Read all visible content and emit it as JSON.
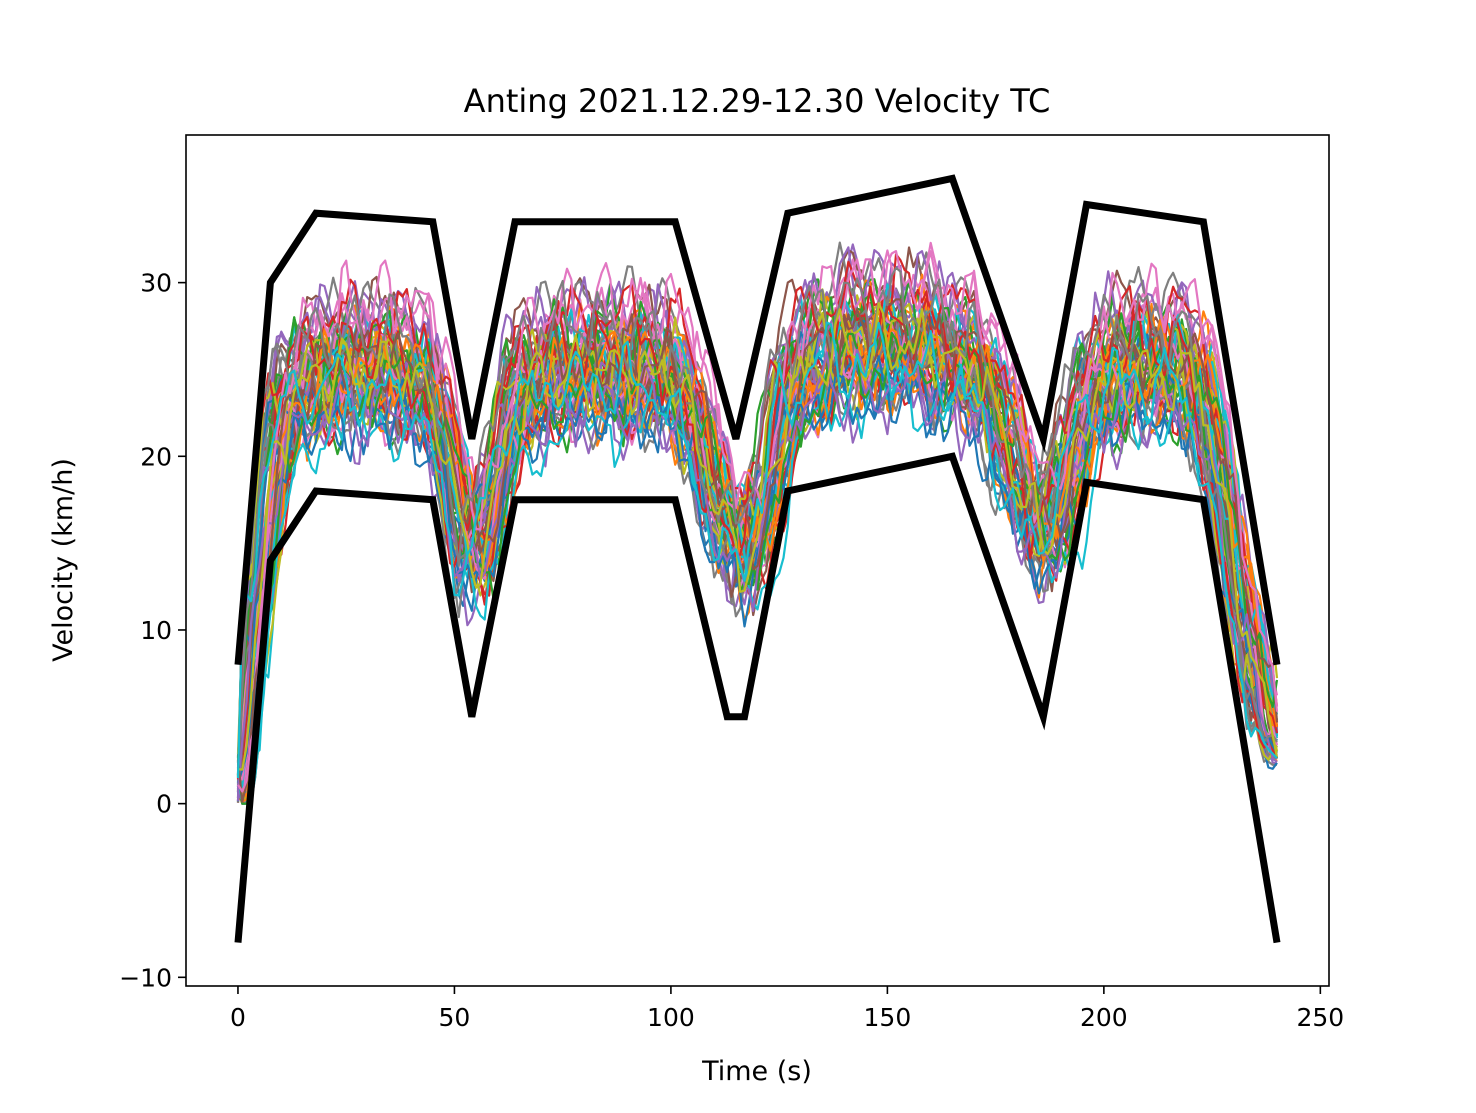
{
  "chart_data": {
    "type": "line",
    "title": "Anting 2021.12.29-12.30 Velocity TC",
    "xlabel": "Time (s)",
    "ylabel": "Velocity (km/h)",
    "xlim": [
      -12,
      252
    ],
    "ylim": [
      -10.5,
      38.5
    ],
    "xticks": [
      0,
      50,
      100,
      150,
      200,
      250
    ],
    "xtick_labels": [
      "0",
      "50",
      "100",
      "150",
      "200",
      "250"
    ],
    "yticks": [
      -10,
      0,
      10,
      20,
      30
    ],
    "ytick_labels": [
      "−10",
      "0",
      "10",
      "20",
      "30"
    ],
    "grid": false,
    "legend": "none",
    "bounds": {
      "upper": {
        "x": [
          0,
          7.5,
          18,
          45,
          54,
          64,
          101,
          115,
          127,
          165,
          186,
          196,
          223,
          240
        ],
        "y": [
          8,
          30,
          34,
          33.5,
          21,
          33.5,
          33.5,
          21,
          34,
          36,
          21,
          34.5,
          33.5,
          8
        ]
      },
      "lower": {
        "x": [
          0,
          7.5,
          18,
          45,
          54,
          64,
          101,
          113,
          117,
          127,
          165,
          186,
          196,
          223,
          240
        ],
        "y": [
          -8,
          14,
          18,
          17.5,
          5,
          17.5,
          17.5,
          5,
          5,
          18,
          20,
          5,
          18.5,
          17.5,
          -8
        ]
      }
    },
    "runs": {
      "count": 60,
      "template": {
        "x": [
          0,
          4,
          8,
          12,
          18,
          30,
          42,
          47,
          51,
          54,
          57,
          60,
          64,
          70,
          80,
          90,
          101,
          106,
          110,
          114,
          117,
          120,
          124,
          127,
          135,
          150,
          160,
          165,
          172,
          178,
          183,
          186,
          189,
          193,
          197,
          205,
          215,
          222,
          226,
          230,
          235,
          240
        ],
        "y": [
          0,
          10,
          20,
          23.5,
          25,
          25.5,
          25,
          22,
          17,
          14.5,
          15.5,
          19,
          23.5,
          25,
          25.5,
          25.5,
          25,
          22,
          18.5,
          15.5,
          14.5,
          16,
          20,
          24,
          26.5,
          27,
          26.5,
          26,
          25,
          21,
          17,
          16,
          17,
          20,
          24,
          25.5,
          25.5,
          25,
          20,
          14,
          8,
          3
        ]
      },
      "colors": [
        "#1f77b4",
        "#ff7f0e",
        "#2ca02c",
        "#d62728",
        "#9467bd",
        "#8c564b",
        "#e377c2",
        "#7f7f7f",
        "#bcbd22",
        "#17becf"
      ]
    }
  }
}
